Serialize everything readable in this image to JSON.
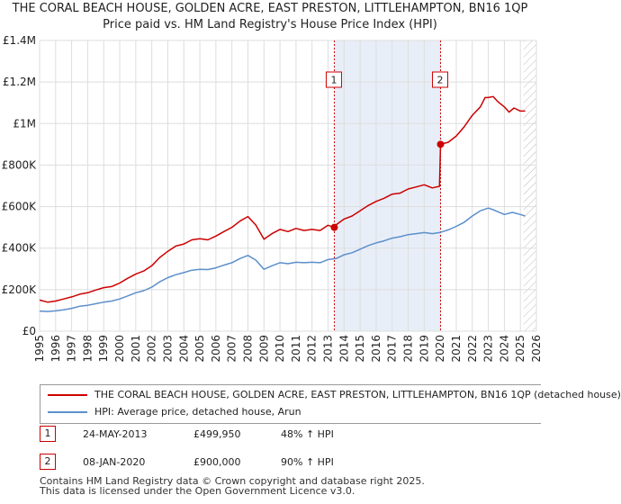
{
  "header": {
    "title_line1": "THE CORAL BEACH HOUSE, GOLDEN ACRE, EAST PRESTON, LITTLEHAMPTON, BN16 1QP",
    "title_line2": "Price paid vs. HM Land Registry's House Price Index (HPI)"
  },
  "chart_data": {
    "type": "line",
    "title": "THE CORAL BEACH HOUSE, GOLDEN ACRE, EAST PRESTON, LITTLEHAMPTON, BN16 1QP",
    "subtitle": "Price paid vs. HM Land Registry's House Price Index (HPI)",
    "xlabel": "",
    "ylabel": "",
    "xlim": [
      1995,
      2026
    ],
    "ylim": [
      0,
      1400000
    ],
    "y_ticks": [
      0,
      200000,
      400000,
      600000,
      800000,
      1000000,
      1200000,
      1400000
    ],
    "y_tick_labels": [
      "£0",
      "£200K",
      "£400K",
      "£600K",
      "£800K",
      "£1M",
      "£1.2M",
      "£1.4M"
    ],
    "x_ticks": [
      1995,
      1996,
      1997,
      1998,
      1999,
      2000,
      2001,
      2002,
      2003,
      2004,
      2005,
      2006,
      2007,
      2008,
      2009,
      2010,
      2011,
      2012,
      2013,
      2014,
      2015,
      2016,
      2017,
      2018,
      2019,
      2020,
      2021,
      2022,
      2023,
      2024,
      2025,
      2026
    ],
    "grid": true,
    "shaded_region": [
      2013.39,
      2020.02
    ],
    "hatched_from": 2025.2,
    "colors": {
      "property": "#cc0000",
      "hpi": "#5b8fcc",
      "shade": "#e8eef8",
      "grid": "#dddddd"
    },
    "series": [
      {
        "name": "THE CORAL BEACH HOUSE, GOLDEN ACRE, EAST PRESTON, LITTLEHAMPTON, BN16 1QP (detached house)",
        "color": "#cc0000",
        "x": [
          1995,
          1995.5,
          1996,
          1996.5,
          1997,
          1997.5,
          1998,
          1998.5,
          1999,
          1999.5,
          2000,
          2000.5,
          2001,
          2001.5,
          2002,
          2002.5,
          2003,
          2003.5,
          2004,
          2004.5,
          2005,
          2005.5,
          2006,
          2006.5,
          2007,
          2007.5,
          2008,
          2008.5,
          2009,
          2009.5,
          2010,
          2010.5,
          2011,
          2011.5,
          2012,
          2012.5,
          2013,
          2013.39,
          2013.5,
          2014,
          2014.5,
          2015,
          2015.5,
          2016,
          2016.5,
          2017,
          2017.5,
          2018,
          2018.5,
          2019,
          2019.5,
          2019.95,
          2020.02,
          2020.5,
          2021,
          2021.5,
          2022,
          2022.5,
          2022.8,
          2023,
          2023.3,
          2023.6,
          2024,
          2024.3,
          2024.6,
          2025,
          2025.3
        ],
        "values": [
          150000,
          140000,
          145000,
          155000,
          165000,
          178000,
          185000,
          198000,
          210000,
          215000,
          232000,
          255000,
          275000,
          290000,
          315000,
          355000,
          385000,
          410000,
          420000,
          440000,
          445000,
          440000,
          458000,
          480000,
          500000,
          530000,
          552000,
          510000,
          443000,
          470000,
          490000,
          480000,
          495000,
          485000,
          490000,
          485000,
          510000,
          499950,
          512000,
          540000,
          555000,
          580000,
          605000,
          625000,
          640000,
          660000,
          665000,
          685000,
          695000,
          705000,
          690000,
          698000,
          900000,
          910000,
          940000,
          985000,
          1040000,
          1080000,
          1125000,
          1125000,
          1130000,
          1105000,
          1080000,
          1055000,
          1075000,
          1060000,
          1060000
        ]
      },
      {
        "name": "HPI: Average price, detached house, Arun",
        "color": "#5b8fcc",
        "x": [
          1995,
          1995.5,
          1996,
          1996.5,
          1997,
          1997.5,
          1998,
          1998.5,
          1999,
          1999.5,
          2000,
          2000.5,
          2001,
          2001.5,
          2002,
          2002.5,
          2003,
          2003.5,
          2004,
          2004.5,
          2005,
          2005.5,
          2006,
          2006.5,
          2007,
          2007.5,
          2008,
          2008.5,
          2009,
          2009.5,
          2010,
          2010.5,
          2011,
          2011.5,
          2012,
          2012.5,
          2013,
          2013.5,
          2014,
          2014.5,
          2015,
          2015.5,
          2016,
          2016.5,
          2017,
          2017.5,
          2018,
          2018.5,
          2019,
          2019.5,
          2020,
          2020.5,
          2021,
          2021.5,
          2022,
          2022.5,
          2023,
          2023.3,
          2023.6,
          2024,
          2024.5,
          2025,
          2025.3
        ],
        "values": [
          97000,
          95000,
          98000,
          103000,
          110000,
          120000,
          125000,
          132000,
          140000,
          145000,
          155000,
          170000,
          185000,
          195000,
          212000,
          238000,
          258000,
          272000,
          282000,
          294000,
          298000,
          297000,
          305000,
          318000,
          330000,
          350000,
          365000,
          342000,
          298000,
          315000,
          330000,
          325000,
          332000,
          330000,
          332000,
          330000,
          345000,
          350000,
          368000,
          378000,
          395000,
          412000,
          425000,
          435000,
          448000,
          455000,
          465000,
          470000,
          475000,
          470000,
          476000,
          488000,
          505000,
          525000,
          555000,
          580000,
          593000,
          585000,
          575000,
          562000,
          572000,
          562000,
          555000
        ]
      }
    ],
    "markers": [
      {
        "label": "1",
        "x": 2013.39,
        "value": 499950
      },
      {
        "label": "2",
        "x": 2020.02,
        "value": 900000
      }
    ]
  },
  "legend": {
    "property_label": "THE CORAL BEACH HOUSE, GOLDEN ACRE, EAST PRESTON, LITTLEHAMPTON, BN16 1QP (detached house)",
    "hpi_label": "HPI: Average price, detached house, Arun"
  },
  "transactions": [
    {
      "num": "1",
      "date": "24-MAY-2013",
      "price": "£499,950",
      "hpi": "48% ↑ HPI"
    },
    {
      "num": "2",
      "date": "08-JAN-2020",
      "price": "£900,000",
      "hpi": "90% ↑ HPI"
    }
  ],
  "footer": {
    "line1": "Contains HM Land Registry data © Crown copyright and database right 2025.",
    "line2": "This data is licensed under the Open Government Licence v3.0."
  }
}
